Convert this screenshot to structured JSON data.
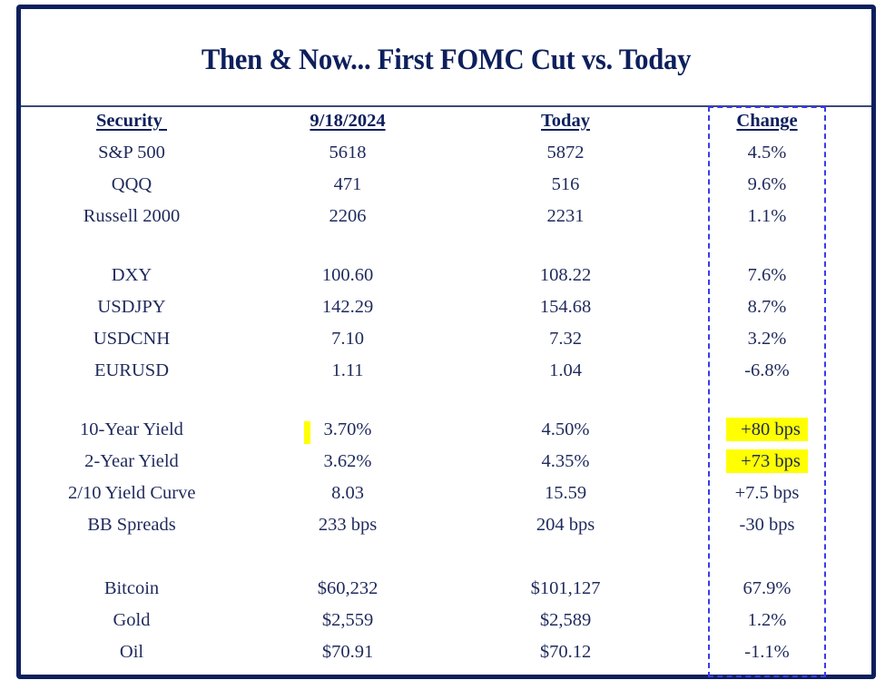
{
  "title": "Then & Now... First FOMC Cut vs. Today",
  "columns": [
    "Security ",
    "9/18/2024",
    "Today",
    "Change"
  ],
  "colors": {
    "border": "#0d1f5c",
    "text": "#1f2a5c",
    "dash": "#3a3af0",
    "highlight": "#ffff00"
  },
  "groups": [
    [
      {
        "security": "S&P 500",
        "then": "5618",
        "today": "5872",
        "change": "4.5%"
      },
      {
        "security": "QQQ",
        "then": "471",
        "today": "516",
        "change": "9.6%"
      },
      {
        "security": "Russell 2000",
        "then": "2206",
        "today": "2231",
        "change": "1.1%"
      }
    ],
    [
      {
        "security": "DXY",
        "then": "100.60",
        "today": "108.22",
        "change": "7.6%"
      },
      {
        "security": "USDJPY",
        "then": "142.29",
        "today": "154.68",
        "change": "8.7%"
      },
      {
        "security": "USDCNH",
        "then": "7.10",
        "today": "7.32",
        "change": "3.2%"
      },
      {
        "security": "EURUSD",
        "then": "1.11",
        "today": "1.04",
        "change": "-6.8%"
      }
    ],
    [
      {
        "security": "10-Year Yield",
        "then": "3.70%",
        "today": "4.50%",
        "change": "+80 bps",
        "highlight": true
      },
      {
        "security": "2-Year Yield",
        "then": "3.62%",
        "today": "4.35%",
        "change": "+73 bps",
        "highlight": true
      },
      {
        "security": "2/10 Yield Curve",
        "then": "8.03",
        "today": "15.59",
        "change": "+7.5 bps"
      },
      {
        "security": "BB Spreads",
        "then": "233 bps",
        "today": "204 bps",
        "change": "-30 bps"
      }
    ],
    [
      {
        "security": "Bitcoin",
        "then": "$60,232",
        "today": "$101,127",
        "change": "67.9%"
      },
      {
        "security": "Gold",
        "then": "$2,559",
        "today": "$2,589",
        "change": "1.2%"
      },
      {
        "security": "Oil",
        "then": "$70.91",
        "today": "$70.12",
        "change": "-1.1%"
      }
    ]
  ]
}
